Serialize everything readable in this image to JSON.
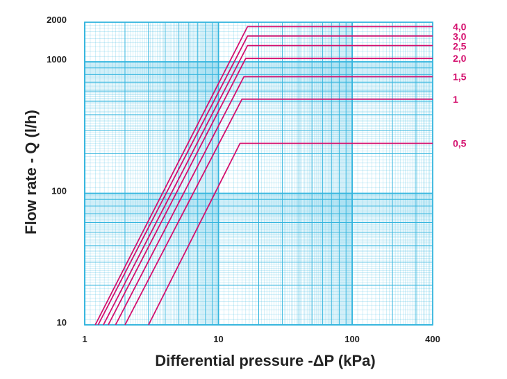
{
  "chart_data": {
    "type": "line",
    "xscale": "log",
    "yscale": "log",
    "xlabel": "Differential pressure -ΔP (kPa)",
    "ylabel": "Flow rate - Q (l/h)",
    "xlim": [
      1,
      400
    ],
    "ylim": [
      10,
      2000
    ],
    "x_ticks": [
      {
        "value": 1,
        "label": "1"
      },
      {
        "value": 10,
        "label": "10"
      },
      {
        "value": 100,
        "label": "100"
      },
      {
        "value": 400,
        "label": "400"
      }
    ],
    "y_ticks": [
      {
        "value": 10,
        "label": "10"
      },
      {
        "value": 100,
        "label": "100"
      },
      {
        "value": 1000,
        "label": "1000"
      },
      {
        "value": 2000,
        "label": "2000"
      }
    ],
    "grid": true,
    "series": [
      {
        "name": "4,0",
        "points": [
          [
            1.2,
            10
          ],
          [
            16.5,
            1850
          ],
          [
            400,
            1850
          ]
        ]
      },
      {
        "name": "3,0",
        "points": [
          [
            1.26,
            10
          ],
          [
            16.5,
            1570
          ],
          [
            400,
            1570
          ]
        ]
      },
      {
        "name": "2,5",
        "points": [
          [
            1.38,
            10
          ],
          [
            16.5,
            1330
          ],
          [
            400,
            1330
          ]
        ]
      },
      {
        "name": "2,0",
        "points": [
          [
            1.5,
            10
          ],
          [
            16,
            1060
          ],
          [
            400,
            1060
          ]
        ]
      },
      {
        "name": "1,5",
        "points": [
          [
            1.7,
            10
          ],
          [
            15.5,
            770
          ],
          [
            400,
            770
          ]
        ]
      },
      {
        "name": "1",
        "points": [
          [
            2,
            10
          ],
          [
            15,
            520
          ],
          [
            400,
            520
          ]
        ]
      },
      {
        "name": "0,5",
        "points": [
          [
            3,
            10
          ],
          [
            14.5,
            240
          ],
          [
            400,
            240
          ]
        ]
      }
    ],
    "colors": {
      "grid": "#33b5de",
      "series": "#d4106e",
      "text": "#222222"
    }
  }
}
